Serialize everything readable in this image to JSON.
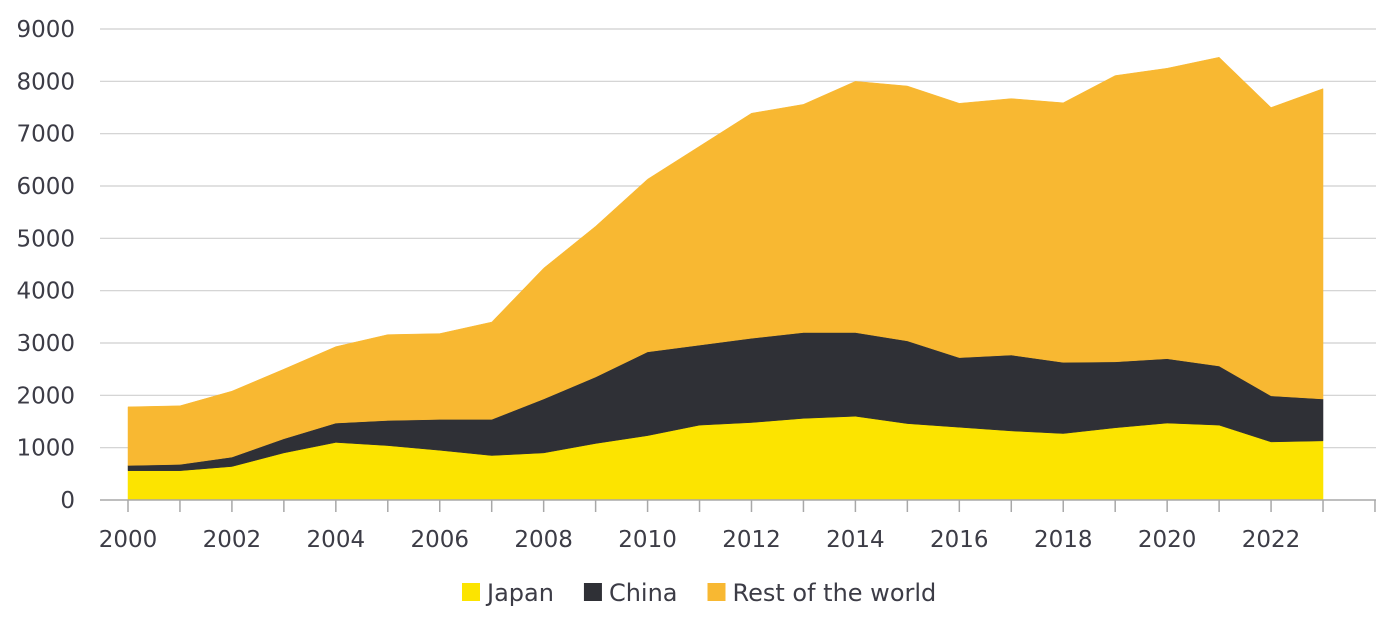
{
  "chart_data": {
    "type": "area",
    "stacked": true,
    "title": "",
    "xlabel": "",
    "ylabel": "",
    "x": [
      2000,
      2001,
      2002,
      2003,
      2004,
      2005,
      2006,
      2007,
      2008,
      2009,
      2010,
      2011,
      2012,
      2013,
      2014,
      2015,
      2016,
      2017,
      2018,
      2019,
      2020,
      2021,
      2022,
      2023
    ],
    "xlim": [
      2000,
      2023.5
    ],
    "xticks": [
      2000,
      2002,
      2004,
      2006,
      2008,
      2010,
      2012,
      2014,
      2016,
      2018,
      2020,
      2022
    ],
    "xtick_labels": [
      "2000",
      "2002",
      "2004",
      "2006",
      "2008",
      "2010",
      "2012",
      "2014",
      "2016",
      "2018",
      "2020",
      "2022"
    ],
    "ylim": [
      0,
      9000
    ],
    "yticks": [
      0,
      1000,
      2000,
      3000,
      4000,
      5000,
      6000,
      7000,
      8000,
      9000
    ],
    "ytick_labels": [
      "0",
      "1000",
      "2000",
      "3000",
      "4000",
      "5000",
      "6000",
      "7000",
      "8000",
      "9000"
    ],
    "grid": "horizontal",
    "legend_position": "bottom-center",
    "series": [
      {
        "name": "Japan",
        "color": "#fce400",
        "values": [
          560,
          560,
          640,
          900,
          1100,
          1040,
          950,
          850,
          900,
          1080,
          1230,
          1430,
          1480,
          1560,
          1600,
          1460,
          1390,
          1320,
          1270,
          1380,
          1470,
          1430,
          1110,
          1130
        ]
      },
      {
        "name": "China",
        "color": "#2f3036",
        "values": [
          100,
          120,
          180,
          270,
          370,
          480,
          590,
          690,
          1030,
          1270,
          1600,
          1530,
          1610,
          1640,
          1600,
          1580,
          1330,
          1450,
          1360,
          1260,
          1230,
          1130,
          880,
          800
        ]
      },
      {
        "name": "Rest of the world",
        "color": "#f8b832",
        "values": [
          1120,
          1120,
          1260,
          1330,
          1460,
          1640,
          1640,
          1860,
          2500,
          2880,
          3300,
          3800,
          4300,
          4360,
          4800,
          4870,
          4860,
          4900,
          4960,
          5470,
          5550,
          5900,
          5510,
          5930
        ]
      }
    ]
  }
}
